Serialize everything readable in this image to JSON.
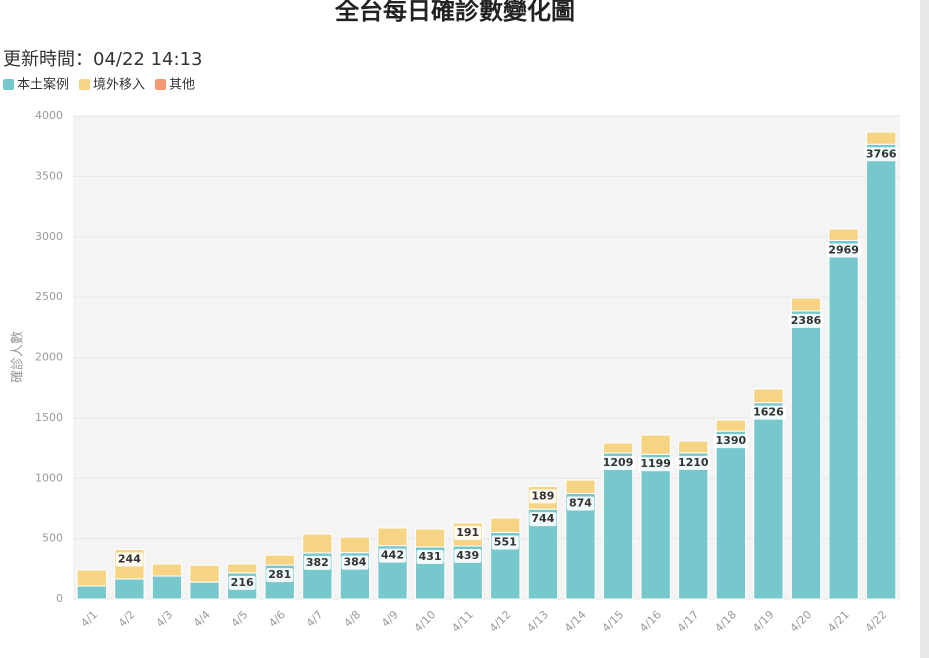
{
  "chart_data": {
    "type": "stacked_bar",
    "title": "全台每日確診數變化圖",
    "subtitle": "更新時間：04/22 14:13",
    "y_label": "確診人數",
    "categories": [
      "4/1",
      "4/2",
      "4/3",
      "4/4",
      "4/5",
      "4/6",
      "4/7",
      "4/8",
      "4/9",
      "4/10",
      "4/11",
      "4/12",
      "4/13",
      "4/14",
      "4/15",
      "4/16",
      "4/17",
      "4/18",
      "4/19",
      "4/20",
      "4/21",
      "4/22"
    ],
    "series": [
      {
        "name": "本土案例",
        "color": "#76c8cd",
        "values": [
          108,
          166,
          190,
          140,
          216,
          281,
          382,
          384,
          442,
          431,
          439,
          551,
          744,
          874,
          1209,
          1199,
          1210,
          1390,
          1626,
          2386,
          2969,
          3766
        ],
        "value_labels": [
          null,
          null,
          null,
          null,
          "216",
          "281",
          "382",
          "384",
          "442",
          "431",
          "439",
          "551",
          "744",
          "874",
          "1209",
          "1199",
          "1210",
          "1390",
          "1626",
          "2386",
          "2969",
          "3766"
        ]
      },
      {
        "name": "境外移入",
        "color": "#f7d483",
        "values": [
          132,
          244,
          100,
          140,
          74,
          83,
          156,
          129,
          146,
          149,
          191,
          120,
          189,
          111,
          83,
          159,
          98,
          92,
          113,
          107,
          95,
          101
        ],
        "value_labels": [
          null,
          "244",
          null,
          null,
          null,
          null,
          null,
          null,
          null,
          null,
          "191",
          null,
          "189",
          null,
          null,
          null,
          null,
          null,
          null,
          null,
          null,
          null
        ]
      },
      {
        "name": "其他",
        "color": "#f59a73",
        "values": [
          0,
          0,
          0,
          0,
          0,
          0,
          0,
          0,
          0,
          0,
          0,
          0,
          0,
          0,
          0,
          0,
          0,
          0,
          0,
          0,
          0,
          0
        ],
        "value_labels": [
          null,
          null,
          null,
          null,
          null,
          null,
          null,
          null,
          null,
          null,
          null,
          null,
          null,
          null,
          null,
          null,
          null,
          null,
          null,
          null,
          null,
          null
        ]
      }
    ],
    "ylim": [
      0,
      4000
    ],
    "yticks": [
      0,
      500,
      1000,
      1500,
      2000,
      2500,
      3000,
      3500,
      4000
    ],
    "grid": true
  }
}
